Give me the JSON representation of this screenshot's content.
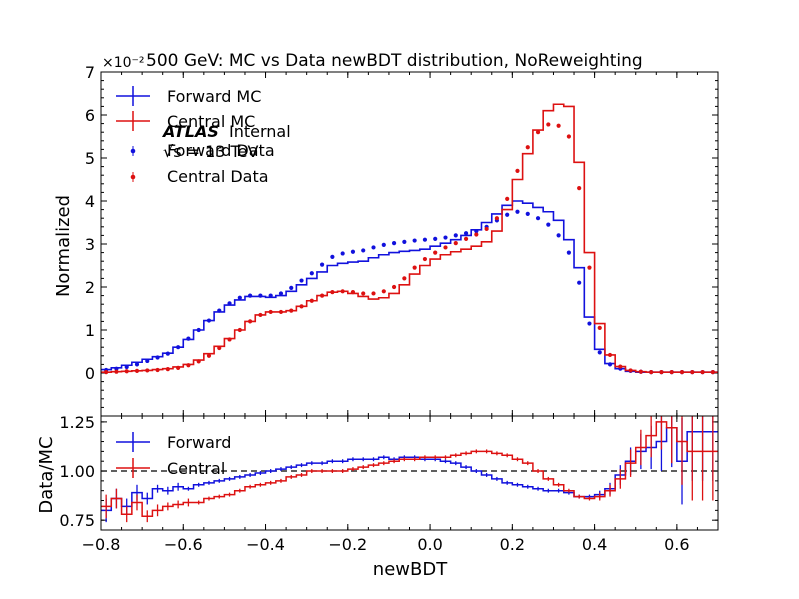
{
  "chart_data": [
    {
      "type": "line",
      "title": "500 GeV: MC vs Data newBDT distribution, NoReweighting",
      "ylabel": "Normalized",
      "xlabel": "",
      "y_multiplier": "×10⁻²",
      "xlim": [
        -0.8,
        0.7
      ],
      "ylim": [
        -1,
        7
      ],
      "x_ticks": [
        -0.8,
        -0.6,
        -0.4,
        -0.2,
        0.0,
        0.2,
        0.4,
        0.6
      ],
      "y_ticks": [
        0,
        1,
        2,
        3,
        4,
        5,
        6,
        7
      ],
      "y_tick_labels": [
        "0",
        "1",
        "2",
        "3",
        "4",
        "5",
        "6",
        "7"
      ],
      "annotation": {
        "atlas": "ATLAS",
        "status": "Internal",
        "energy": "√s = 13 TeV"
      },
      "legend_position": "top-left",
      "legend": [
        "Forward MC",
        "Central MC",
        "Forward Data",
        "Central Data"
      ],
      "colors": {
        "forward": "#1111dd",
        "central": "#dd1111"
      },
      "bin_edges": [
        -0.8,
        -0.775,
        -0.75,
        -0.725,
        -0.7,
        -0.675,
        -0.65,
        -0.625,
        -0.6,
        -0.575,
        -0.55,
        -0.525,
        -0.5,
        -0.475,
        -0.45,
        -0.425,
        -0.4,
        -0.375,
        -0.35,
        -0.325,
        -0.3,
        -0.275,
        -0.25,
        -0.225,
        -0.2,
        -0.175,
        -0.15,
        -0.125,
        -0.1,
        -0.075,
        -0.05,
        -0.025,
        0.0,
        0.025,
        0.05,
        0.075,
        0.1,
        0.125,
        0.15,
        0.175,
        0.2,
        0.225,
        0.25,
        0.275,
        0.3,
        0.325,
        0.35,
        0.375,
        0.4,
        0.425,
        0.45,
        0.475,
        0.5,
        0.525,
        0.55,
        0.575,
        0.6,
        0.625,
        0.65,
        0.675,
        0.7
      ],
      "series": [
        {
          "name": "Forward MC",
          "style": "step",
          "color": "#1111dd",
          "values": [
            0.08,
            0.12,
            0.18,
            0.25,
            0.32,
            0.38,
            0.46,
            0.6,
            0.78,
            1.0,
            1.22,
            1.42,
            1.58,
            1.7,
            1.78,
            1.78,
            1.76,
            1.8,
            1.9,
            2.05,
            2.2,
            2.35,
            2.5,
            2.55,
            2.58,
            2.6,
            2.68,
            2.75,
            2.8,
            2.83,
            2.85,
            2.88,
            2.95,
            3.02,
            3.1,
            3.2,
            3.33,
            3.5,
            3.7,
            3.9,
            4.0,
            3.95,
            3.85,
            3.75,
            3.55,
            3.1,
            2.45,
            1.3,
            0.55,
            0.22,
            0.1,
            0.04,
            0.02,
            0.02,
            0.02,
            0.02,
            0.02,
            0.02,
            0.02,
            0.02
          ]
        },
        {
          "name": "Central MC",
          "style": "step",
          "color": "#dd1111",
          "values": [
            0.02,
            0.03,
            0.04,
            0.05,
            0.06,
            0.08,
            0.1,
            0.14,
            0.2,
            0.3,
            0.45,
            0.62,
            0.8,
            1.0,
            1.2,
            1.35,
            1.42,
            1.42,
            1.45,
            1.55,
            1.68,
            1.8,
            1.88,
            1.9,
            1.85,
            1.78,
            1.72,
            1.75,
            1.85,
            2.05,
            2.3,
            2.5,
            2.65,
            2.75,
            2.82,
            2.88,
            2.95,
            3.05,
            3.3,
            3.8,
            4.5,
            5.1,
            5.65,
            6.1,
            6.25,
            6.2,
            4.9,
            2.8,
            1.15,
            0.42,
            0.15,
            0.06,
            0.03,
            0.02,
            0.02,
            0.02,
            0.02,
            0.02,
            0.02,
            0.02
          ]
        },
        {
          "name": "Forward Data",
          "style": "points",
          "color": "#1111dd",
          "values": [
            0.07,
            0.1,
            0.14,
            0.2,
            0.28,
            0.36,
            0.45,
            0.6,
            0.8,
            1.0,
            1.22,
            1.45,
            1.62,
            1.75,
            1.8,
            1.8,
            1.8,
            1.85,
            1.98,
            2.15,
            2.32,
            2.52,
            2.7,
            2.78,
            2.82,
            2.85,
            2.92,
            2.98,
            3.02,
            3.05,
            3.08,
            3.1,
            3.12,
            3.15,
            3.2,
            3.25,
            3.3,
            3.4,
            3.55,
            3.68,
            3.75,
            3.7,
            3.6,
            3.45,
            3.2,
            2.8,
            2.1,
            1.15,
            0.48,
            0.2,
            0.1,
            0.05,
            0.03,
            0.02,
            0.02,
            0.02,
            0.02,
            0.02,
            0.02,
            0.02
          ]
        },
        {
          "name": "Central Data",
          "style": "points",
          "color": "#dd1111",
          "values": [
            0.02,
            0.03,
            0.04,
            0.05,
            0.06,
            0.07,
            0.09,
            0.12,
            0.18,
            0.27,
            0.4,
            0.58,
            0.78,
            1.0,
            1.2,
            1.35,
            1.42,
            1.42,
            1.45,
            1.55,
            1.68,
            1.8,
            1.88,
            1.9,
            1.88,
            1.85,
            1.85,
            1.9,
            2.0,
            2.2,
            2.45,
            2.65,
            2.8,
            2.92,
            3.02,
            3.12,
            3.22,
            3.35,
            3.6,
            4.05,
            4.7,
            5.25,
            5.6,
            5.78,
            5.75,
            5.5,
            4.3,
            2.45,
            1.05,
            0.42,
            0.15,
            0.06,
            0.03,
            0.02,
            0.02,
            0.02,
            0.02,
            0.02,
            0.02,
            0.02
          ]
        }
      ]
    },
    {
      "type": "line",
      "title": "",
      "xlabel": "newBDT",
      "ylabel": "Data/MC",
      "xlim": [
        -0.8,
        0.7
      ],
      "ylim": [
        0.7,
        1.28
      ],
      "x_ticks": [
        -0.8,
        -0.6,
        -0.4,
        -0.2,
        0.0,
        0.2,
        0.4,
        0.6
      ],
      "x_tick_labels": [
        "−0.8",
        "−0.6",
        "−0.4",
        "−0.2",
        "0.0",
        "0.2",
        "0.4",
        "0.6"
      ],
      "y_ticks": [
        0.75,
        1.0,
        1.25
      ],
      "y_tick_labels": [
        "0.75",
        "1.00",
        "1.25"
      ],
      "reference_line": 1.0,
      "legend_position": "top-left",
      "legend": [
        "Forward",
        "Central"
      ],
      "bin_edges": [
        -0.8,
        -0.775,
        -0.75,
        -0.725,
        -0.7,
        -0.675,
        -0.65,
        -0.625,
        -0.6,
        -0.575,
        -0.55,
        -0.525,
        -0.5,
        -0.475,
        -0.45,
        -0.425,
        -0.4,
        -0.375,
        -0.35,
        -0.325,
        -0.3,
        -0.275,
        -0.25,
        -0.225,
        -0.2,
        -0.175,
        -0.15,
        -0.125,
        -0.1,
        -0.075,
        -0.05,
        -0.025,
        0.0,
        0.025,
        0.05,
        0.075,
        0.1,
        0.125,
        0.15,
        0.175,
        0.2,
        0.225,
        0.25,
        0.275,
        0.3,
        0.325,
        0.35,
        0.375,
        0.4,
        0.425,
        0.45,
        0.475,
        0.5,
        0.525,
        0.55,
        0.575,
        0.6,
        0.625,
        0.65,
        0.675,
        0.7
      ],
      "series": [
        {
          "name": "Forward",
          "color": "#1111dd",
          "values": [
            0.8,
            0.86,
            0.82,
            0.89,
            0.86,
            0.91,
            0.9,
            0.92,
            0.91,
            0.93,
            0.94,
            0.95,
            0.96,
            0.97,
            0.98,
            0.99,
            1.0,
            1.01,
            1.02,
            1.03,
            1.04,
            1.04,
            1.05,
            1.05,
            1.06,
            1.06,
            1.06,
            1.07,
            1.06,
            1.07,
            1.07,
            1.06,
            1.06,
            1.05,
            1.04,
            1.02,
            1.0,
            0.98,
            0.96,
            0.94,
            0.93,
            0.92,
            0.91,
            0.9,
            0.9,
            0.89,
            0.87,
            0.87,
            0.88,
            0.91,
            0.98,
            1.05,
            1.1,
            1.12,
            1.15,
            1.22,
            1.05,
            1.2,
            1.2,
            1.2
          ],
          "errors": [
            0.06,
            0.05,
            0.04,
            0.04,
            0.03,
            0.02,
            0.02,
            0.02,
            0.01,
            0.01,
            0.01,
            0.01,
            0.01,
            0.01,
            0.01,
            0.01,
            0.01,
            0.01,
            0.01,
            0.01,
            0.01,
            0.01,
            0.01,
            0.01,
            0.01,
            0.01,
            0.01,
            0.01,
            0.01,
            0.01,
            0.01,
            0.01,
            0.01,
            0.01,
            0.01,
            0.01,
            0.01,
            0.01,
            0.01,
            0.01,
            0.01,
            0.01,
            0.01,
            0.01,
            0.01,
            0.01,
            0.01,
            0.01,
            0.02,
            0.03,
            0.05,
            0.07,
            0.09,
            0.11,
            0.15,
            0.2,
            0.22,
            0.25,
            0.25,
            0.25
          ]
        },
        {
          "name": "Central",
          "color": "#dd1111",
          "values": [
            0.82,
            0.86,
            0.78,
            0.84,
            0.77,
            0.8,
            0.82,
            0.83,
            0.84,
            0.84,
            0.86,
            0.87,
            0.88,
            0.9,
            0.92,
            0.93,
            0.94,
            0.95,
            0.97,
            0.98,
            1.0,
            1.0,
            1.0,
            1.0,
            1.01,
            1.02,
            1.03,
            1.04,
            1.05,
            1.06,
            1.06,
            1.07,
            1.07,
            1.07,
            1.08,
            1.09,
            1.1,
            1.1,
            1.09,
            1.08,
            1.06,
            1.04,
            1.0,
            0.96,
            0.93,
            0.9,
            0.87,
            0.86,
            0.87,
            0.9,
            0.96,
            1.04,
            1.12,
            1.18,
            1.25,
            1.22,
            1.15,
            1.1,
            1.1,
            1.1
          ],
          "errors": [
            0.06,
            0.05,
            0.04,
            0.04,
            0.03,
            0.03,
            0.02,
            0.02,
            0.02,
            0.01,
            0.01,
            0.01,
            0.01,
            0.01,
            0.01,
            0.01,
            0.01,
            0.01,
            0.01,
            0.01,
            0.01,
            0.01,
            0.01,
            0.01,
            0.01,
            0.01,
            0.01,
            0.01,
            0.01,
            0.01,
            0.01,
            0.01,
            0.01,
            0.01,
            0.01,
            0.01,
            0.01,
            0.01,
            0.01,
            0.01,
            0.01,
            0.01,
            0.01,
            0.01,
            0.01,
            0.01,
            0.01,
            0.01,
            0.02,
            0.03,
            0.05,
            0.07,
            0.09,
            0.11,
            0.14,
            0.18,
            0.22,
            0.25,
            0.25,
            0.25
          ]
        }
      ]
    }
  ]
}
